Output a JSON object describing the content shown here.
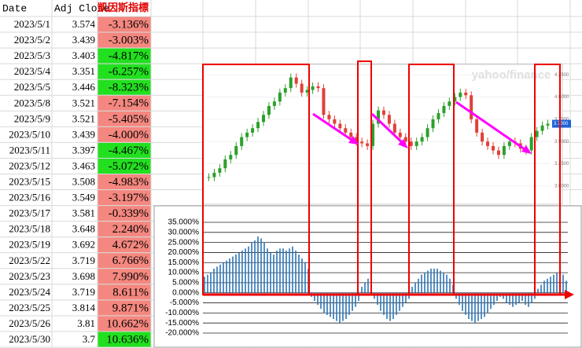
{
  "table": {
    "columns": [
      "Date",
      "Adj Close",
      "凱因斯指標"
    ],
    "rows": [
      {
        "date": "2023/5/1",
        "adj_close": "3.574",
        "indicator": "-3.136%",
        "fill": "#f4877f"
      },
      {
        "date": "2023/5/2",
        "adj_close": "3.439",
        "indicator": "-3.003%",
        "fill": "#f4877f"
      },
      {
        "date": "2023/5/3",
        "adj_close": "3.403",
        "indicator": "-4.817%",
        "fill": "#22e01f"
      },
      {
        "date": "2023/5/4",
        "adj_close": "3.351",
        "indicator": "-6.257%",
        "fill": "#22e01f"
      },
      {
        "date": "2023/5/5",
        "adj_close": "3.446",
        "indicator": "-8.323%",
        "fill": "#22e01f"
      },
      {
        "date": "2023/5/8",
        "adj_close": "3.521",
        "indicator": "-7.154%",
        "fill": "#f4877f"
      },
      {
        "date": "2023/5/9",
        "adj_close": "3.521",
        "indicator": "-5.405%",
        "fill": "#f4877f"
      },
      {
        "date": "2023/5/10",
        "adj_close": "3.439",
        "indicator": "-4.000%",
        "fill": "#f4877f"
      },
      {
        "date": "2023/5/11",
        "adj_close": "3.397",
        "indicator": "-4.467%",
        "fill": "#22e01f"
      },
      {
        "date": "2023/5/12",
        "adj_close": "3.463",
        "indicator": "-5.072%",
        "fill": "#22e01f"
      },
      {
        "date": "2023/5/15",
        "adj_close": "3.508",
        "indicator": "-4.983%",
        "fill": "#f4877f"
      },
      {
        "date": "2023/5/16",
        "adj_close": "3.549",
        "indicator": "-3.197%",
        "fill": "#f4877f"
      },
      {
        "date": "2023/5/17",
        "adj_close": "3.581",
        "indicator": "-0.339%",
        "fill": "#f4877f"
      },
      {
        "date": "2023/5/18",
        "adj_close": "3.648",
        "indicator": "2.240%",
        "fill": "#f4877f"
      },
      {
        "date": "2023/5/19",
        "adj_close": "3.692",
        "indicator": "4.672%",
        "fill": "#f4877f"
      },
      {
        "date": "2023/5/22",
        "adj_close": "3.719",
        "indicator": "6.766%",
        "fill": "#f4877f"
      },
      {
        "date": "2023/5/23",
        "adj_close": "3.698",
        "indicator": "7.990%",
        "fill": "#f4877f"
      },
      {
        "date": "2023/5/24",
        "adj_close": "3.719",
        "indicator": "8.611%",
        "fill": "#f4877f"
      },
      {
        "date": "2023/5/25",
        "adj_close": "3.814",
        "indicator": "9.871%",
        "fill": "#f4877f"
      },
      {
        "date": "2023/5/26",
        "adj_close": "3.81",
        "indicator": "10.662%",
        "fill": "#f4877f"
      },
      {
        "date": "2023/5/30",
        "adj_close": "3.7",
        "indicator": "10.636%",
        "fill": "#22e01f"
      }
    ]
  },
  "chart_data": [
    {
      "type": "candlestick",
      "watermark": "yahoo/finance",
      "up_color": "#2ca02c",
      "down_color": "#e0403a",
      "values": [
        3.1,
        3.15,
        3.2,
        3.3,
        3.35,
        3.45,
        3.55,
        3.6,
        3.65,
        3.72,
        3.8,
        3.9,
        3.95,
        4.05,
        4.1,
        4.22,
        4.15,
        4.05,
        4.08,
        4.12,
        4.1,
        3.8,
        3.75,
        3.7,
        3.65,
        3.6,
        3.55,
        3.5,
        3.48,
        3.45,
        3.7,
        3.85,
        3.8,
        3.7,
        3.6,
        3.55,
        3.5,
        3.45,
        3.5,
        3.55,
        3.65,
        3.75,
        3.82,
        3.9,
        3.95,
        4.0,
        4.05,
        4.02,
        3.75,
        3.6,
        3.5,
        3.45,
        3.4,
        3.35,
        3.45,
        3.5,
        3.48,
        3.42,
        3.4,
        3.55,
        3.62,
        3.68,
        3.7
      ],
      "ylim": [
        2.84,
        4.34
      ],
      "yticks": [
        {
          "value": 3.0,
          "label": "3.0000"
        },
        {
          "value": 3.25,
          "label": "3.2500"
        },
        {
          "value": 3.5,
          "label": "3.5000"
        },
        {
          "value": 3.75,
          "label": "3.7500"
        },
        {
          "value": 4.0,
          "label": "4.0000"
        },
        {
          "value": 4.25,
          "label": "4.2500"
        }
      ],
      "current_price": {
        "value": 3.7,
        "label": "3.7000"
      },
      "grid": true
    },
    {
      "type": "bar",
      "color": "#2e75b6",
      "values": [
        8,
        9,
        10,
        12,
        13,
        14,
        15,
        16,
        17,
        18,
        19,
        20,
        21,
        22,
        23,
        25,
        26,
        28,
        27,
        25,
        22,
        20,
        19,
        21,
        22,
        22,
        21,
        22,
        23,
        21,
        19,
        17,
        15,
        12,
        -2,
        -4,
        -6,
        -8,
        -10,
        -11,
        -12,
        -13,
        -14,
        -15,
        -14,
        -13,
        -11,
        -9,
        -7,
        -4,
        3,
        5,
        7,
        6,
        -3,
        -6,
        -9,
        -11,
        -13,
        -14,
        -13,
        -11,
        -9,
        -7,
        -5,
        -3,
        3,
        5,
        7,
        9,
        10,
        11,
        12,
        12,
        12,
        11,
        10,
        9,
        7,
        4,
        -3,
        -6,
        -9,
        -11,
        -13,
        -14,
        -15,
        -14,
        -13,
        -12,
        -10,
        -8,
        -6,
        -4,
        -2,
        -3,
        -5,
        -6,
        -7,
        -6,
        -5,
        -4,
        -6,
        -7,
        -5,
        -3,
        2,
        4,
        6,
        7,
        8,
        9,
        10,
        11,
        9,
        6
      ],
      "ylim": [
        -20,
        35
      ],
      "yticks": [
        {
          "value": -20,
          "label": "-20.000%"
        },
        {
          "value": -15,
          "label": "-15.000%"
        },
        {
          "value": -10,
          "label": "-10.000%"
        },
        {
          "value": -5,
          "label": "-5.000%"
        },
        {
          "value": 0,
          "label": "0.000%"
        },
        {
          "value": 5,
          "label": "5.000%"
        },
        {
          "value": 10,
          "label": "10.000%"
        },
        {
          "value": 15,
          "label": "15.000%"
        },
        {
          "value": 20,
          "label": "20.000%"
        },
        {
          "value": 25,
          "label": "25.000%"
        },
        {
          "value": 30,
          "label": "30.000%"
        },
        {
          "value": 35,
          "label": "35.000%"
        }
      ],
      "grid": true
    }
  ]
}
